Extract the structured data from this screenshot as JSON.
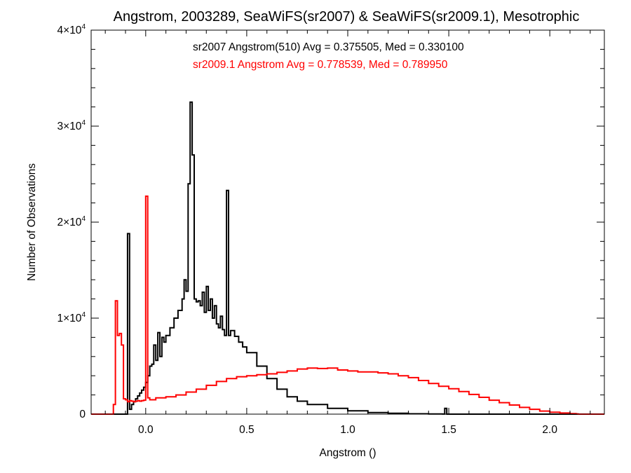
{
  "chart_data": {
    "type": "line",
    "title": "Angstrom, 2003289, SeaWiFS(sr2007) & SeaWiFS(sr2009.1), Mesotrophic",
    "xlabel": "Angstrom ()",
    "ylabel": "Number of Observations",
    "xlim": [
      -0.27,
      2.27
    ],
    "ylim": [
      0,
      40000
    ],
    "x_ticks": [
      0.0,
      0.5,
      1.0,
      1.5,
      2.0
    ],
    "x_tick_labels": [
      "0.0",
      "0.5",
      "1.0",
      "1.5",
      "2.0"
    ],
    "y_ticks": [
      {
        "value": 0,
        "base": "0",
        "exp": ""
      },
      {
        "value": 10000,
        "base": "1×10",
        "exp": "4"
      },
      {
        "value": 20000,
        "base": "2×10",
        "exp": "4"
      },
      {
        "value": 30000,
        "base": "3×10",
        "exp": "4"
      },
      {
        "value": 40000,
        "base": "4×10",
        "exp": "4"
      }
    ],
    "grid": false,
    "annotations": [
      {
        "text": "sr2007 Angstrom(510) Avg = 0.375505, Med = 0.330100",
        "color": "#000000"
      },
      {
        "text": "sr2009.1 Angstrom Avg = 0.778539, Med = 0.789950",
        "color": "#ff0000"
      }
    ],
    "series": [
      {
        "name": "sr2007",
        "color": "#000000",
        "x": [
          -0.27,
          -0.1,
          -0.09,
          -0.08,
          -0.07,
          -0.06,
          -0.05,
          -0.04,
          -0.03,
          -0.02,
          -0.01,
          0.0,
          0.01,
          0.02,
          0.03,
          0.04,
          0.05,
          0.06,
          0.07,
          0.08,
          0.09,
          0.1,
          0.12,
          0.14,
          0.16,
          0.18,
          0.19,
          0.2,
          0.21,
          0.22,
          0.23,
          0.24,
          0.25,
          0.26,
          0.27,
          0.28,
          0.29,
          0.3,
          0.31,
          0.32,
          0.33,
          0.34,
          0.35,
          0.36,
          0.37,
          0.38,
          0.39,
          0.4,
          0.41,
          0.42,
          0.44,
          0.46,
          0.48,
          0.5,
          0.55,
          0.6,
          0.65,
          0.7,
          0.75,
          0.8,
          0.9,
          1.0,
          1.1,
          1.2,
          1.3,
          1.4,
          1.47,
          1.48,
          1.49,
          1.6,
          2.27
        ],
        "y": [
          0,
          0,
          18800,
          500,
          1000,
          1300,
          1600,
          1900,
          2200,
          2500,
          2800,
          3300,
          4000,
          5000,
          5200,
          7200,
          5600,
          8500,
          6000,
          8000,
          7500,
          8200,
          9000,
          10000,
          10800,
          12000,
          14000,
          12800,
          24000,
          32500,
          27000,
          12000,
          11700,
          11800,
          11300,
          12700,
          10600,
          13300,
          10800,
          12000,
          10000,
          11300,
          9400,
          9000,
          10200,
          8800,
          8200,
          23300,
          8200,
          8700,
          8100,
          7500,
          7000,
          6400,
          5000,
          3700,
          2600,
          1800,
          1350,
          1000,
          600,
          350,
          170,
          90,
          40,
          20,
          10,
          600,
          0,
          0,
          0
        ],
        "step": true
      },
      {
        "name": "sr2009.1",
        "color": "#ff0000",
        "x": [
          -0.27,
          -0.17,
          -0.16,
          -0.15,
          -0.14,
          -0.13,
          -0.12,
          -0.11,
          -0.1,
          -0.09,
          -0.08,
          -0.07,
          -0.06,
          -0.05,
          -0.04,
          -0.03,
          -0.02,
          -0.01,
          0.0,
          0.01,
          0.02,
          0.05,
          0.1,
          0.15,
          0.2,
          0.25,
          0.3,
          0.35,
          0.4,
          0.45,
          0.5,
          0.55,
          0.6,
          0.65,
          0.7,
          0.75,
          0.8,
          0.85,
          0.9,
          0.95,
          1.0,
          1.05,
          1.1,
          1.15,
          1.2,
          1.25,
          1.3,
          1.35,
          1.4,
          1.45,
          1.5,
          1.55,
          1.6,
          1.65,
          1.7,
          1.75,
          1.8,
          1.85,
          1.9,
          1.95,
          2.0,
          2.05,
          2.1,
          2.13,
          2.14,
          2.27
        ],
        "y": [
          0,
          0,
          1000,
          11800,
          8200,
          8400,
          7200,
          1600,
          1500,
          1300,
          1400,
          1350,
          1300,
          1350,
          1400,
          1350,
          1400,
          1450,
          22700,
          1700,
          1500,
          1700,
          1800,
          2000,
          2300,
          2600,
          3000,
          3400,
          3700,
          3900,
          4000,
          4100,
          4200,
          4350,
          4500,
          4700,
          4800,
          4750,
          4800,
          4600,
          4500,
          4400,
          4400,
          4300,
          4200,
          4000,
          3800,
          3500,
          3200,
          2900,
          2650,
          2350,
          2050,
          1750,
          1450,
          1200,
          950,
          700,
          500,
          320,
          200,
          120,
          60,
          30,
          0,
          0
        ],
        "step": true
      }
    ]
  }
}
